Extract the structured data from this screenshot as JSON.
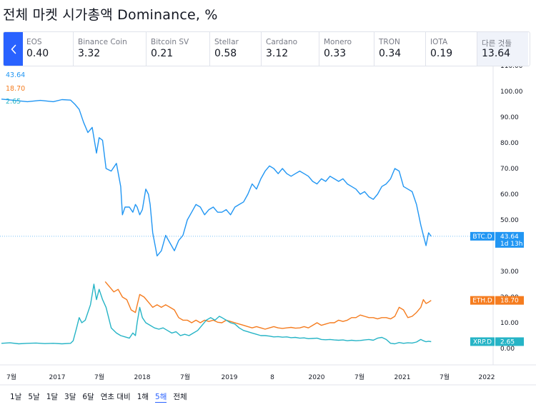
{
  "page_title": "전체 마켓 시가총액 Dominance, %",
  "ticker_strip": [
    {
      "name": "EOS",
      "value": "0.40",
      "x": 30,
      "w": 71
    },
    {
      "name": "Binance Coin",
      "value": "3.32",
      "x": 101,
      "w": 102
    },
    {
      "name": "Bitcoin SV",
      "value": "0.21",
      "x": 203,
      "w": 89
    },
    {
      "name": "Stellar",
      "value": "0.58",
      "x": 292,
      "w": 72
    },
    {
      "name": "Cardano",
      "value": "3.12",
      "x": 364,
      "w": 81
    },
    {
      "name": "Monero",
      "value": "0.33",
      "x": 445,
      "w": 77
    },
    {
      "name": "TRON",
      "value": "0.34",
      "x": 522,
      "w": 72
    },
    {
      "name": "IOTA",
      "value": "0.19",
      "x": 594,
      "w": 72
    },
    {
      "name": "다른 것들",
      "value": "13.64",
      "x": 666,
      "w": 72
    }
  ],
  "icons": {
    "prev": "chevron-left-icon"
  },
  "colors": {
    "btc": "#2196f3",
    "eth": "#f57c1f",
    "xrp": "#26b4c6",
    "accent": "#2962ff"
  },
  "chart_data": {
    "type": "line",
    "x_ticks": [
      "7월",
      "2017",
      "7월",
      "2018",
      "7월",
      "2019",
      "8",
      "2020",
      "7월",
      "2021",
      "7월",
      "2022"
    ],
    "y_ticks": [
      "110.00",
      "100.00",
      "90.00",
      "80.00",
      "70.00",
      "60.00",
      "50.00",
      "30.00",
      "20.00",
      "10.00",
      "0.00"
    ],
    "ylim": [
      0,
      110
    ],
    "top_labels": [
      "43.64",
      "18.70",
      "2.65"
    ],
    "series": [
      {
        "name": "BTC.D",
        "last": "43.64",
        "sub": "1d 13h",
        "color": "#2196f3",
        "points": [
          [
            2016.45,
            97
          ],
          [
            2016.6,
            96.5
          ],
          [
            2016.75,
            96
          ],
          [
            2016.9,
            96.5
          ],
          [
            2017.05,
            96
          ],
          [
            2017.15,
            96.8
          ],
          [
            2017.25,
            96.6
          ],
          [
            2017.3,
            95
          ],
          [
            2017.35,
            93
          ],
          [
            2017.4,
            88
          ],
          [
            2017.45,
            84
          ],
          [
            2017.5,
            86
          ],
          [
            2017.55,
            76
          ],
          [
            2017.58,
            82
          ],
          [
            2017.62,
            81
          ],
          [
            2017.66,
            70
          ],
          [
            2017.72,
            69
          ],
          [
            2017.78,
            72
          ],
          [
            2017.83,
            63
          ],
          [
            2017.85,
            52
          ],
          [
            2017.88,
            55
          ],
          [
            2017.93,
            55
          ],
          [
            2017.97,
            53
          ],
          [
            2018.0,
            56
          ],
          [
            2018.02,
            55
          ],
          [
            2018.05,
            52
          ],
          [
            2018.08,
            54
          ],
          [
            2018.12,
            62
          ],
          [
            2018.15,
            60
          ],
          [
            2018.17,
            56
          ],
          [
            2018.2,
            45
          ],
          [
            2018.25,
            36
          ],
          [
            2018.3,
            38
          ],
          [
            2018.35,
            44
          ],
          [
            2018.4,
            41
          ],
          [
            2018.45,
            38
          ],
          [
            2018.5,
            42
          ],
          [
            2018.55,
            44
          ],
          [
            2018.6,
            50
          ],
          [
            2018.65,
            53
          ],
          [
            2018.7,
            56
          ],
          [
            2018.75,
            55
          ],
          [
            2018.8,
            52
          ],
          [
            2018.85,
            54
          ],
          [
            2018.9,
            55
          ],
          [
            2018.95,
            53
          ],
          [
            2019.0,
            53
          ],
          [
            2019.05,
            54
          ],
          [
            2019.1,
            52
          ],
          [
            2019.15,
            55
          ],
          [
            2019.2,
            56
          ],
          [
            2019.25,
            57
          ],
          [
            2019.3,
            60
          ],
          [
            2019.35,
            64
          ],
          [
            2019.4,
            62
          ],
          [
            2019.45,
            66
          ],
          [
            2019.5,
            69
          ],
          [
            2019.55,
            71
          ],
          [
            2019.6,
            70
          ],
          [
            2019.65,
            68
          ],
          [
            2019.7,
            70
          ],
          [
            2019.75,
            68
          ],
          [
            2019.8,
            67
          ],
          [
            2019.85,
            68
          ],
          [
            2019.9,
            69
          ],
          [
            2019.95,
            68
          ],
          [
            2020.0,
            67
          ],
          [
            2020.05,
            65
          ],
          [
            2020.1,
            64
          ],
          [
            2020.15,
            66
          ],
          [
            2020.2,
            65
          ],
          [
            2020.25,
            67
          ],
          [
            2020.3,
            66
          ],
          [
            2020.35,
            65
          ],
          [
            2020.4,
            66
          ],
          [
            2020.45,
            64
          ],
          [
            2020.5,
            63
          ],
          [
            2020.55,
            62
          ],
          [
            2020.6,
            60
          ],
          [
            2020.65,
            61
          ],
          [
            2020.7,
            59
          ],
          [
            2020.75,
            58
          ],
          [
            2020.8,
            60
          ],
          [
            2020.85,
            63
          ],
          [
            2020.9,
            64
          ],
          [
            2020.95,
            66
          ],
          [
            2021.0,
            70
          ],
          [
            2021.05,
            69
          ],
          [
            2021.1,
            63
          ],
          [
            2021.15,
            62
          ],
          [
            2021.2,
            61
          ],
          [
            2021.25,
            56
          ],
          [
            2021.3,
            48
          ],
          [
            2021.33,
            44
          ],
          [
            2021.36,
            40
          ],
          [
            2021.39,
            45
          ],
          [
            2021.42,
            43.64
          ]
        ]
      },
      {
        "name": "ETH.D",
        "last": "18.70",
        "color": "#f57c1f",
        "points": [
          [
            2017.65,
            26
          ],
          [
            2017.7,
            24
          ],
          [
            2017.75,
            22
          ],
          [
            2017.8,
            23
          ],
          [
            2017.85,
            20
          ],
          [
            2017.9,
            19
          ],
          [
            2017.95,
            15
          ],
          [
            2018.0,
            14
          ],
          [
            2018.05,
            21
          ],
          [
            2018.1,
            20
          ],
          [
            2018.15,
            18
          ],
          [
            2018.2,
            16
          ],
          [
            2018.25,
            17
          ],
          [
            2018.3,
            16
          ],
          [
            2018.35,
            17
          ],
          [
            2018.4,
            16
          ],
          [
            2018.45,
            15
          ],
          [
            2018.5,
            12
          ],
          [
            2018.55,
            11
          ],
          [
            2018.6,
            11
          ],
          [
            2018.65,
            10
          ],
          [
            2018.7,
            11
          ],
          [
            2018.75,
            10
          ],
          [
            2018.8,
            11
          ],
          [
            2018.85,
            10.5
          ],
          [
            2018.9,
            11
          ],
          [
            2018.95,
            10.2
          ],
          [
            2019.0,
            10
          ],
          [
            2019.05,
            11
          ],
          [
            2019.1,
            10.5
          ],
          [
            2019.15,
            10
          ],
          [
            2019.2,
            9.5
          ],
          [
            2019.25,
            9
          ],
          [
            2019.3,
            8.5
          ],
          [
            2019.35,
            8
          ],
          [
            2019.4,
            8.5
          ],
          [
            2019.45,
            8
          ],
          [
            2019.5,
            7.5
          ],
          [
            2019.55,
            8
          ],
          [
            2019.6,
            8.5
          ],
          [
            2019.65,
            8
          ],
          [
            2019.7,
            7.8
          ],
          [
            2019.75,
            8
          ],
          [
            2019.8,
            8.2
          ],
          [
            2019.85,
            7.9
          ],
          [
            2019.9,
            8
          ],
          [
            2019.95,
            8.5
          ],
          [
            2020.0,
            8
          ],
          [
            2020.05,
            9
          ],
          [
            2020.1,
            10
          ],
          [
            2020.15,
            9
          ],
          [
            2020.2,
            9.5
          ],
          [
            2020.25,
            10
          ],
          [
            2020.3,
            10
          ],
          [
            2020.35,
            11
          ],
          [
            2020.4,
            10.5
          ],
          [
            2020.45,
            11
          ],
          [
            2020.5,
            12
          ],
          [
            2020.55,
            12
          ],
          [
            2020.6,
            13
          ],
          [
            2020.65,
            12.5
          ],
          [
            2020.7,
            12
          ],
          [
            2020.75,
            12
          ],
          [
            2020.8,
            11.5
          ],
          [
            2020.85,
            12
          ],
          [
            2020.9,
            12
          ],
          [
            2020.95,
            11.5
          ],
          [
            2021.0,
            12.5
          ],
          [
            2021.05,
            16
          ],
          [
            2021.1,
            15
          ],
          [
            2021.15,
            12
          ],
          [
            2021.2,
            12.5
          ],
          [
            2021.25,
            14
          ],
          [
            2021.3,
            16
          ],
          [
            2021.33,
            19
          ],
          [
            2021.36,
            17.5
          ],
          [
            2021.39,
            18
          ],
          [
            2021.42,
            18.7
          ]
        ]
      },
      {
        "name": "XRP.D",
        "last": "2.65",
        "color": "#26b4c6",
        "points": [
          [
            2016.45,
            2
          ],
          [
            2016.55,
            2.2
          ],
          [
            2016.65,
            1.8
          ],
          [
            2016.75,
            2
          ],
          [
            2016.85,
            2.1
          ],
          [
            2016.95,
            1.9
          ],
          [
            2017.05,
            2
          ],
          [
            2017.15,
            1.8
          ],
          [
            2017.25,
            2
          ],
          [
            2017.28,
            3
          ],
          [
            2017.32,
            8
          ],
          [
            2017.35,
            12
          ],
          [
            2017.38,
            10
          ],
          [
            2017.42,
            11
          ],
          [
            2017.48,
            17
          ],
          [
            2017.52,
            25
          ],
          [
            2017.55,
            19
          ],
          [
            2017.58,
            23
          ],
          [
            2017.62,
            19
          ],
          [
            2017.66,
            16
          ],
          [
            2017.72,
            8
          ],
          [
            2017.78,
            6
          ],
          [
            2017.83,
            5
          ],
          [
            2017.88,
            4.5
          ],
          [
            2017.93,
            4
          ],
          [
            2017.97,
            6
          ],
          [
            2018.0,
            5
          ],
          [
            2018.02,
            10
          ],
          [
            2018.05,
            16
          ],
          [
            2018.08,
            12
          ],
          [
            2018.12,
            10
          ],
          [
            2018.17,
            9
          ],
          [
            2018.22,
            8
          ],
          [
            2018.27,
            7.5
          ],
          [
            2018.32,
            8
          ],
          [
            2018.37,
            7
          ],
          [
            2018.42,
            6
          ],
          [
            2018.47,
            6.5
          ],
          [
            2018.52,
            5
          ],
          [
            2018.57,
            5.5
          ],
          [
            2018.62,
            5
          ],
          [
            2018.67,
            6
          ],
          [
            2018.72,
            7
          ],
          [
            2018.77,
            9
          ],
          [
            2018.82,
            11
          ],
          [
            2018.87,
            12
          ],
          [
            2018.92,
            11
          ],
          [
            2018.97,
            12.5
          ],
          [
            2019.0,
            12
          ],
          [
            2019.05,
            11
          ],
          [
            2019.1,
            10
          ],
          [
            2019.15,
            9.5
          ],
          [
            2019.2,
            8
          ],
          [
            2019.25,
            7
          ],
          [
            2019.3,
            6.5
          ],
          [
            2019.35,
            6
          ],
          [
            2019.4,
            5.5
          ],
          [
            2019.45,
            5
          ],
          [
            2019.5,
            5
          ],
          [
            2019.55,
            4.8
          ],
          [
            2019.6,
            4.5
          ],
          [
            2019.65,
            4.6
          ],
          [
            2019.7,
            4.4
          ],
          [
            2019.75,
            4.5
          ],
          [
            2019.8,
            4.2
          ],
          [
            2019.85,
            4.3
          ],
          [
            2019.9,
            4
          ],
          [
            2019.95,
            4.1
          ],
          [
            2020.0,
            3.8
          ],
          [
            2020.05,
            3.9
          ],
          [
            2020.1,
            4
          ],
          [
            2020.15,
            3.5
          ],
          [
            2020.2,
            3.4
          ],
          [
            2020.25,
            3.5
          ],
          [
            2020.3,
            3.3
          ],
          [
            2020.35,
            3.2
          ],
          [
            2020.4,
            3.3
          ],
          [
            2020.45,
            3
          ],
          [
            2020.5,
            3.2
          ],
          [
            2020.55,
            3
          ],
          [
            2020.6,
            3.1
          ],
          [
            2020.65,
            3.3
          ],
          [
            2020.7,
            3.5
          ],
          [
            2020.75,
            3.2
          ],
          [
            2020.8,
            4
          ],
          [
            2020.85,
            4.3
          ],
          [
            2020.9,
            3.5
          ],
          [
            2020.95,
            2
          ],
          [
            2021.0,
            1.8
          ],
          [
            2021.05,
            2.3
          ],
          [
            2021.1,
            2
          ],
          [
            2021.15,
            2.2
          ],
          [
            2021.2,
            2.1
          ],
          [
            2021.25,
            2.5
          ],
          [
            2021.3,
            3.5
          ],
          [
            2021.33,
            3
          ],
          [
            2021.36,
            2.6
          ],
          [
            2021.39,
            2.8
          ],
          [
            2021.42,
            2.65
          ]
        ]
      }
    ]
  },
  "time_ranges": [
    {
      "label": "1날",
      "active": false
    },
    {
      "label": "5날",
      "active": false
    },
    {
      "label": "1달",
      "active": false
    },
    {
      "label": "3달",
      "active": false
    },
    {
      "label": "6달",
      "active": false
    },
    {
      "label": "연초 대비",
      "active": false
    },
    {
      "label": "1해",
      "active": false
    },
    {
      "label": "5해",
      "active": true
    },
    {
      "label": "전체",
      "active": false
    }
  ]
}
